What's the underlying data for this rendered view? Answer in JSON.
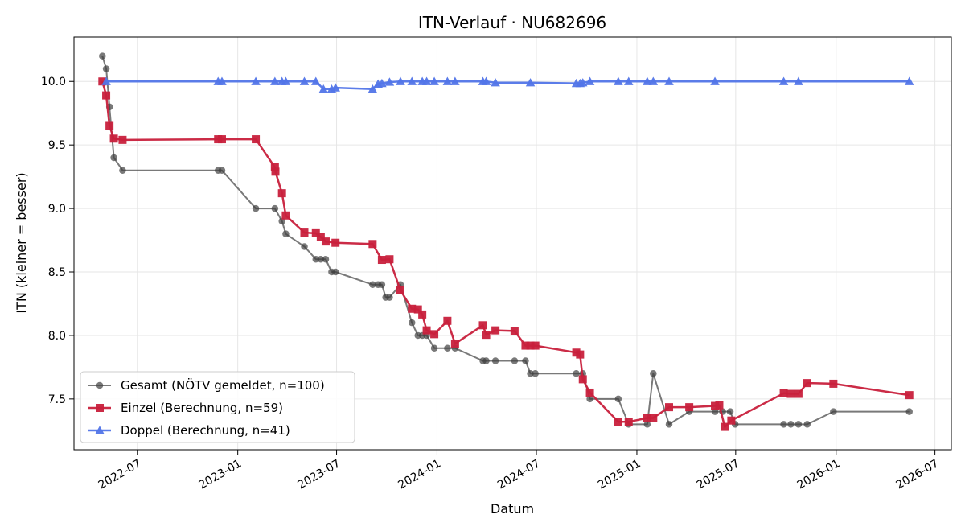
{
  "chart_data": {
    "type": "line",
    "title": "ITN-Verlauf · NU682696",
    "xlabel": "Datum",
    "ylabel": "ITN  (kleiner = besser)",
    "x_ticks": [
      "2022-07",
      "2023-01",
      "2023-07",
      "2024-01",
      "2024-07",
      "2025-01",
      "2025-07",
      "2026-01",
      "2026-07"
    ],
    "y_ticks": [
      "7.5",
      "8.0",
      "8.5",
      "9.0",
      "9.5",
      "10.0"
    ],
    "xlim": [
      "2022-03-07",
      "2026-07-31"
    ],
    "ylim": [
      7.1,
      10.35
    ],
    "grid": true,
    "legend": "lower-left",
    "series": [
      {
        "name": "Gesamt (NÖTV gemeldet, n=100)",
        "color": "#404040",
        "marker": "circle",
        "points": [
          [
            "2022-04-28",
            10.2
          ],
          [
            "2022-05-05",
            10.1
          ],
          [
            "2022-05-11",
            9.8
          ],
          [
            "2022-05-19",
            9.4
          ],
          [
            "2022-06-04",
            9.3
          ],
          [
            "2022-11-26",
            9.3
          ],
          [
            "2022-12-03",
            9.3
          ],
          [
            "2023-02-03",
            9.0
          ],
          [
            "2023-03-10",
            9.0
          ],
          [
            "2023-03-23",
            8.9
          ],
          [
            "2023-03-30",
            8.8
          ],
          [
            "2023-05-03",
            8.7
          ],
          [
            "2023-05-24",
            8.6
          ],
          [
            "2023-06-02",
            8.6
          ],
          [
            "2023-06-11",
            8.6
          ],
          [
            "2023-06-22",
            8.5
          ],
          [
            "2023-06-29",
            8.5
          ],
          [
            "2023-09-05",
            8.4
          ],
          [
            "2023-09-15",
            8.4
          ],
          [
            "2023-09-22",
            8.4
          ],
          [
            "2023-09-29",
            8.3
          ],
          [
            "2023-10-06",
            8.3
          ],
          [
            "2023-10-26",
            8.4
          ],
          [
            "2023-11-16",
            8.1
          ],
          [
            "2023-11-27",
            8.0
          ],
          [
            "2023-12-05",
            8.0
          ],
          [
            "2023-12-13",
            8.0
          ],
          [
            "2023-12-27",
            7.9
          ],
          [
            "2024-01-20",
            7.9
          ],
          [
            "2024-02-03",
            7.9
          ],
          [
            "2024-03-25",
            7.8
          ],
          [
            "2024-03-31",
            7.8
          ],
          [
            "2024-04-17",
            7.8
          ],
          [
            "2024-05-22",
            7.8
          ],
          [
            "2024-06-11",
            7.8
          ],
          [
            "2024-06-20",
            7.7
          ],
          [
            "2024-06-29",
            7.7
          ],
          [
            "2024-09-12",
            7.7
          ],
          [
            "2024-09-24",
            7.7
          ],
          [
            "2024-10-07",
            7.5
          ],
          [
            "2024-11-28",
            7.5
          ],
          [
            "2024-12-17",
            7.3
          ],
          [
            "2025-01-20",
            7.3
          ],
          [
            "2025-01-31",
            7.7
          ],
          [
            "2025-03-01",
            7.3
          ],
          [
            "2025-04-07",
            7.4
          ],
          [
            "2025-05-24",
            7.4
          ],
          [
            "2025-06-07",
            7.4
          ],
          [
            "2025-06-21",
            7.4
          ],
          [
            "2025-06-30",
            7.3
          ],
          [
            "2025-09-27",
            7.3
          ],
          [
            "2025-10-10",
            7.3
          ],
          [
            "2025-10-24",
            7.3
          ],
          [
            "2025-11-09",
            7.3
          ],
          [
            "2025-12-27",
            7.4
          ],
          [
            "2026-05-15",
            7.4
          ]
        ]
      },
      {
        "name": "Einzel (Berechnung, n=59)",
        "color": "#c8203c",
        "marker": "square",
        "points": [
          [
            "2022-04-28",
            10.0
          ],
          [
            "2022-05-05",
            9.89
          ],
          [
            "2022-05-11",
            9.65
          ],
          [
            "2022-05-19",
            9.55
          ],
          [
            "2022-06-04",
            9.54
          ],
          [
            "2022-11-26",
            9.545
          ],
          [
            "2022-12-03",
            9.545
          ],
          [
            "2023-02-03",
            9.545
          ],
          [
            "2023-03-10",
            9.325
          ],
          [
            "2023-03-11",
            9.29
          ],
          [
            "2023-03-23",
            9.12
          ],
          [
            "2023-03-30",
            8.945
          ],
          [
            "2023-05-03",
            8.81
          ],
          [
            "2023-05-24",
            8.805
          ],
          [
            "2023-06-02",
            8.775
          ],
          [
            "2023-06-11",
            8.74
          ],
          [
            "2023-06-29",
            8.73
          ],
          [
            "2023-09-05",
            8.72
          ],
          [
            "2023-09-22",
            8.595
          ],
          [
            "2023-10-06",
            8.6
          ],
          [
            "2023-10-26",
            8.355
          ],
          [
            "2023-11-16",
            8.21
          ],
          [
            "2023-11-27",
            8.205
          ],
          [
            "2023-12-05",
            8.165
          ],
          [
            "2023-12-13",
            8.04
          ],
          [
            "2023-12-27",
            8.01
          ],
          [
            "2024-01-20",
            8.115
          ],
          [
            "2024-02-03",
            7.935
          ],
          [
            "2024-03-25",
            8.08
          ],
          [
            "2024-03-31",
            8.005
          ],
          [
            "2024-04-17",
            8.04
          ],
          [
            "2024-05-22",
            8.035
          ],
          [
            "2024-06-11",
            7.92
          ],
          [
            "2024-06-20",
            7.92
          ],
          [
            "2024-06-29",
            7.92
          ],
          [
            "2024-09-12",
            7.865
          ],
          [
            "2024-09-19",
            7.85
          ],
          [
            "2024-09-24",
            7.655
          ],
          [
            "2024-10-07",
            7.55
          ],
          [
            "2024-11-28",
            7.32
          ],
          [
            "2024-12-17",
            7.32
          ],
          [
            "2025-01-20",
            7.35
          ],
          [
            "2025-01-31",
            7.35
          ],
          [
            "2025-03-01",
            7.435
          ],
          [
            "2025-04-07",
            7.435
          ],
          [
            "2025-05-24",
            7.445
          ],
          [
            "2025-06-01",
            7.45
          ],
          [
            "2025-06-11",
            7.28
          ],
          [
            "2025-06-23",
            7.33
          ],
          [
            "2025-09-27",
            7.545
          ],
          [
            "2025-10-10",
            7.54
          ],
          [
            "2025-10-24",
            7.54
          ],
          [
            "2025-11-09",
            7.625
          ],
          [
            "2025-12-27",
            7.62
          ],
          [
            "2026-05-15",
            7.53
          ]
        ]
      },
      {
        "name": "Doppel (Berechnung, n=41)",
        "color": "#5275e8",
        "marker": "triangle",
        "points": [
          [
            "2022-05-05",
            10.0
          ],
          [
            "2022-11-26",
            10.0
          ],
          [
            "2022-12-03",
            10.0
          ],
          [
            "2023-02-03",
            10.0
          ],
          [
            "2023-03-10",
            10.0
          ],
          [
            "2023-03-23",
            10.0
          ],
          [
            "2023-03-30",
            10.0
          ],
          [
            "2023-05-03",
            10.0
          ],
          [
            "2023-05-24",
            10.0
          ],
          [
            "2023-06-07",
            9.94
          ],
          [
            "2023-06-22",
            9.94
          ],
          [
            "2023-06-29",
            9.95
          ],
          [
            "2023-09-05",
            9.94
          ],
          [
            "2023-09-15",
            9.98
          ],
          [
            "2023-09-22",
            9.985
          ],
          [
            "2023-10-06",
            9.995
          ],
          [
            "2023-10-26",
            10.0
          ],
          [
            "2023-11-16",
            10.0
          ],
          [
            "2023-12-05",
            10.0
          ],
          [
            "2023-12-13",
            10.0
          ],
          [
            "2023-12-27",
            10.0
          ],
          [
            "2024-01-20",
            10.0
          ],
          [
            "2024-02-03",
            10.0
          ],
          [
            "2024-03-25",
            10.0
          ],
          [
            "2024-03-31",
            10.0
          ],
          [
            "2024-04-17",
            9.99
          ],
          [
            "2024-06-20",
            9.99
          ],
          [
            "2024-09-12",
            9.985
          ],
          [
            "2024-09-19",
            9.985
          ],
          [
            "2024-09-24",
            9.99
          ],
          [
            "2024-10-07",
            10.0
          ],
          [
            "2024-11-28",
            10.0
          ],
          [
            "2024-12-17",
            10.0
          ],
          [
            "2025-01-20",
            10.0
          ],
          [
            "2025-01-31",
            10.0
          ],
          [
            "2025-03-01",
            10.0
          ],
          [
            "2025-05-24",
            10.0
          ],
          [
            "2025-09-27",
            10.0
          ],
          [
            "2025-10-24",
            10.0
          ],
          [
            "2026-05-15",
            10.0
          ]
        ]
      }
    ]
  }
}
